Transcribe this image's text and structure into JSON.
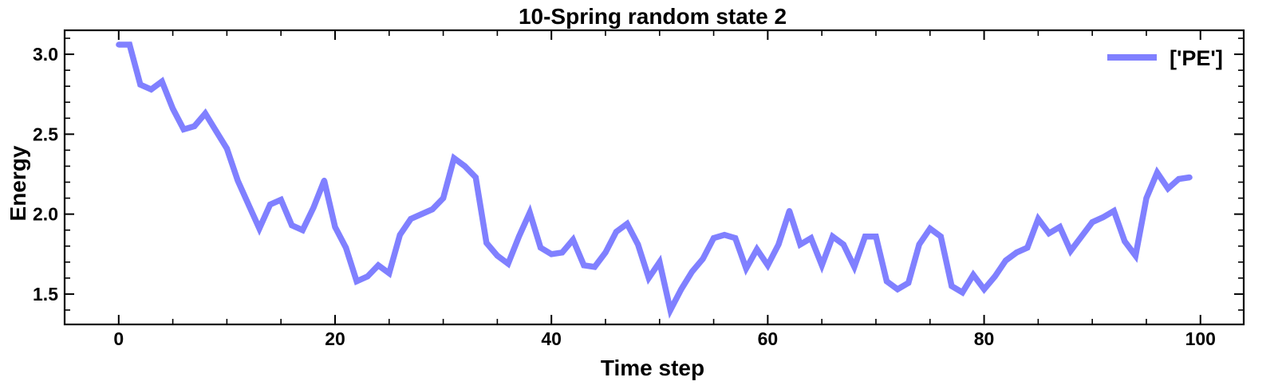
{
  "chart_data": {
    "type": "line",
    "title": "10-Spring random state 2",
    "xlabel": "Time step",
    "ylabel": "Energy",
    "xlim": [
      -5,
      104
    ],
    "ylim": [
      1.31,
      3.15
    ],
    "x_ticks": [
      0,
      20,
      40,
      60,
      80,
      100
    ],
    "x_tick_labels": [
      "0",
      "20",
      "40",
      "60",
      "80",
      "100"
    ],
    "y_ticks": [
      1.5,
      2.0,
      2.5,
      3.0
    ],
    "y_tick_labels": [
      "1.5",
      "2.0",
      "2.5",
      "3.0"
    ],
    "legend_position": "top-right",
    "grid": false,
    "series": [
      {
        "name": "['PE']",
        "color": "#8080ff",
        "x": [
          0,
          1,
          2,
          3,
          4,
          5,
          6,
          7,
          8,
          9,
          10,
          11,
          12,
          13,
          14,
          15,
          16,
          17,
          18,
          19,
          20,
          21,
          22,
          23,
          24,
          25,
          26,
          27,
          28,
          29,
          30,
          31,
          32,
          33,
          34,
          35,
          36,
          37,
          38,
          39,
          40,
          41,
          42,
          43,
          44,
          45,
          46,
          47,
          48,
          49,
          50,
          51,
          52,
          53,
          54,
          55,
          56,
          57,
          58,
          59,
          60,
          61,
          62,
          63,
          64,
          65,
          66,
          67,
          68,
          69,
          70,
          71,
          72,
          73,
          74,
          75,
          76,
          77,
          78,
          79,
          80,
          81,
          82,
          83,
          84,
          85,
          86,
          87,
          88,
          89,
          90,
          91,
          92,
          93,
          94,
          95,
          96,
          97,
          98,
          99
        ],
        "values": [
          3.06,
          3.06,
          2.81,
          2.78,
          2.83,
          2.66,
          2.53,
          2.55,
          2.63,
          2.52,
          2.41,
          2.21,
          2.06,
          1.91,
          2.06,
          2.09,
          1.93,
          1.9,
          2.04,
          2.21,
          1.92,
          1.79,
          1.58,
          1.61,
          1.68,
          1.63,
          1.87,
          1.97,
          2.0,
          2.03,
          2.1,
          2.35,
          2.3,
          2.23,
          1.82,
          1.74,
          1.69,
          1.86,
          2.01,
          1.79,
          1.75,
          1.76,
          1.84,
          1.68,
          1.67,
          1.76,
          1.89,
          1.94,
          1.81,
          1.6,
          1.7,
          1.4,
          1.53,
          1.64,
          1.72,
          1.85,
          1.87,
          1.85,
          1.66,
          1.78,
          1.68,
          1.81,
          2.02,
          1.81,
          1.85,
          1.68,
          1.86,
          1.81,
          1.67,
          1.86,
          1.86,
          1.58,
          1.53,
          1.57,
          1.81,
          1.91,
          1.86,
          1.55,
          1.51,
          1.62,
          1.53,
          1.61,
          1.71,
          1.76,
          1.79,
          1.97,
          1.88,
          1.92,
          1.77,
          1.86,
          1.95,
          1.98,
          2.02,
          1.83,
          1.74,
          2.1,
          2.26,
          2.16,
          2.22,
          2.23
        ]
      }
    ]
  }
}
